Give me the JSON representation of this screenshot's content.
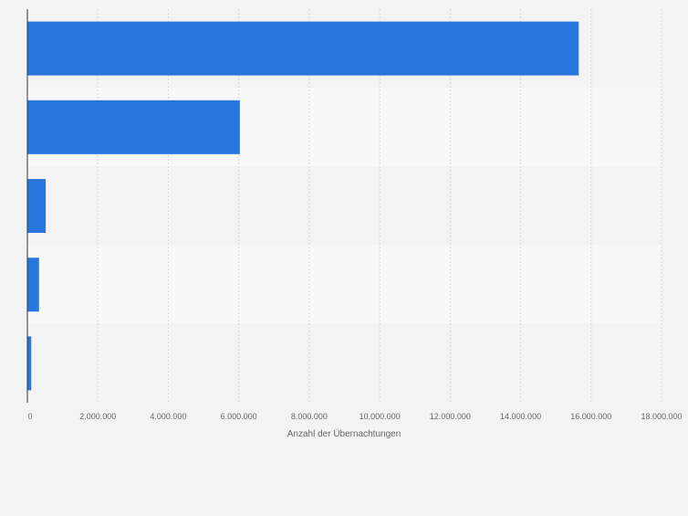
{
  "chart_data": {
    "type": "bar",
    "orientation": "horizontal",
    "categories": [
      "",
      "",
      "",
      "",
      ""
    ],
    "values": [
      15650000,
      6030000,
      520000,
      330000,
      110000
    ],
    "xlabel": "Anzahl der Übernachtungen",
    "ylabel": "",
    "xlim": [
      0,
      18000000
    ],
    "xticks": [
      0,
      2000000,
      4000000,
      6000000,
      8000000,
      10000000,
      12000000,
      14000000,
      16000000,
      18000000
    ],
    "xtick_labels": [
      "0",
      "2.000.000",
      "4.000.000",
      "6.000.000",
      "8.000.000",
      "10.000.000",
      "12.000.000",
      "14.000.000",
      "16.000.000",
      "18.000.000"
    ],
    "grid": true,
    "legend": "none",
    "colors": {
      "bar": "#2876dd",
      "grid": "#d8d8d8",
      "band_dark": "#f3f3f3",
      "band_light": "#f8f8f8",
      "axis": "#333333",
      "text": "#666666"
    }
  }
}
